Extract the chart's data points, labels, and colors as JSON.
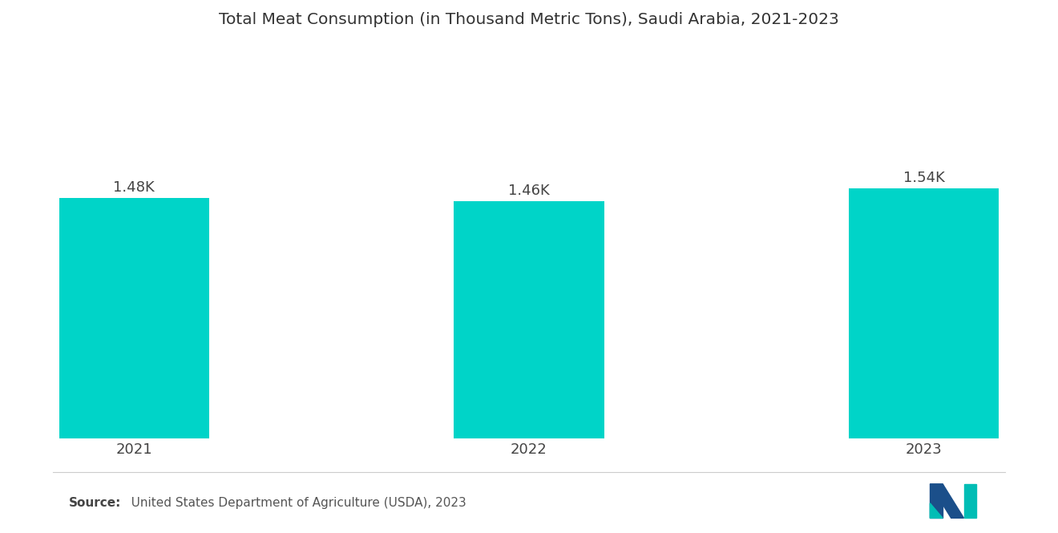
{
  "title": "Total Meat Consumption (in Thousand Metric Tons), Saudi Arabia, 2021-2023",
  "categories": [
    "2021",
    "2022",
    "2023"
  ],
  "values": [
    1480,
    1460,
    1540
  ],
  "labels": [
    "1.48K",
    "1.46K",
    "1.54K"
  ],
  "bar_color": "#00D4C8",
  "background_color": "#ffffff",
  "title_fontsize": 14.5,
  "label_fontsize": 13,
  "tick_fontsize": 13,
  "source_bold": "Source:",
  "source_rest": "   United States Department of Agriculture (USDA), 2023",
  "ylim": [
    0,
    2400
  ],
  "bar_width": 0.38
}
